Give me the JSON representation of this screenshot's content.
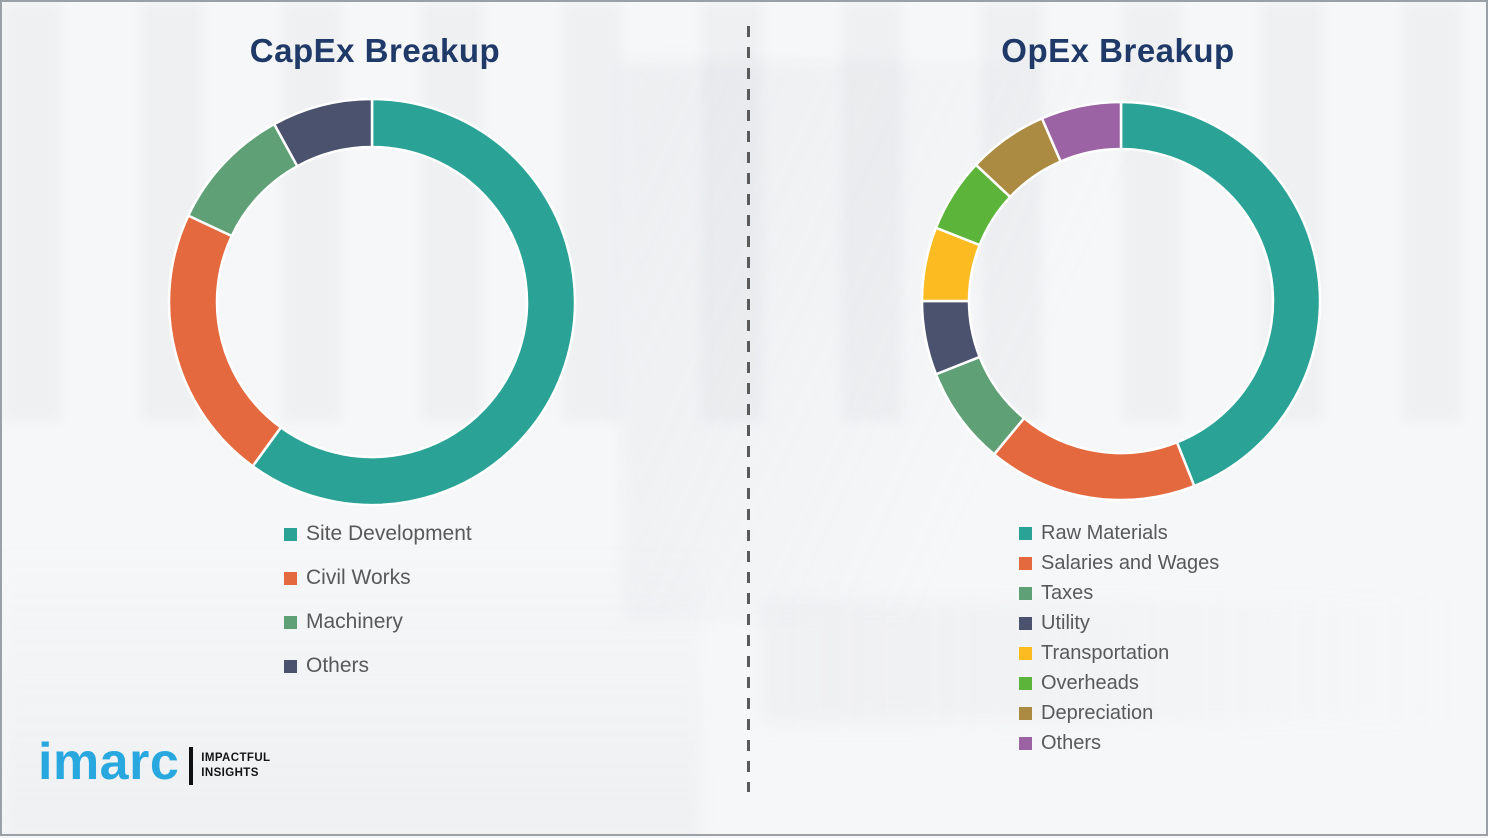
{
  "chart_data": [
    {
      "type": "pie",
      "variant": "donut",
      "title": "CapEx Breakup",
      "legend_position": "bottom-left",
      "labels_shown": false,
      "segments": [
        {
          "label": "Site Development",
          "value": 60,
          "color": "#2aa396"
        },
        {
          "label": "Civil Works",
          "value": 22,
          "color": "#e5693f"
        },
        {
          "label": "Machinery",
          "value": 10,
          "color": "#5fa077"
        },
        {
          "label": "Others",
          "value": 8,
          "color": "#4b526e"
        }
      ]
    },
    {
      "type": "pie",
      "variant": "donut",
      "title": "OpEx Breakup",
      "legend_position": "bottom-left",
      "labels_shown": false,
      "segments": [
        {
          "label": "Raw Materials",
          "value": 44,
          "color": "#2aa396"
        },
        {
          "label": "Salaries and Wages",
          "value": 17,
          "color": "#e5693f"
        },
        {
          "label": "Taxes",
          "value": 8,
          "color": "#5fa077"
        },
        {
          "label": "Utility",
          "value": 6,
          "color": "#4b526e"
        },
        {
          "label": "Transportation",
          "value": 6,
          "color": "#fbbb21"
        },
        {
          "label": "Overheads",
          "value": 6,
          "color": "#5cb43a"
        },
        {
          "label": "Depreciation",
          "value": 6.5,
          "color": "#ab8b42"
        },
        {
          "label": "Others",
          "value": 6.5,
          "color": "#9b63a4"
        }
      ]
    }
  ],
  "logo": {
    "brand": "imarc",
    "tagline_line1": "IMPACTFUL",
    "tagline_line2": "INSIGHTS",
    "brand_color": "#29a8e0"
  },
  "styles": {
    "title_color": "#1f3a68",
    "legend_text_color": "#595959",
    "divider_color": "#5a5a5a"
  }
}
